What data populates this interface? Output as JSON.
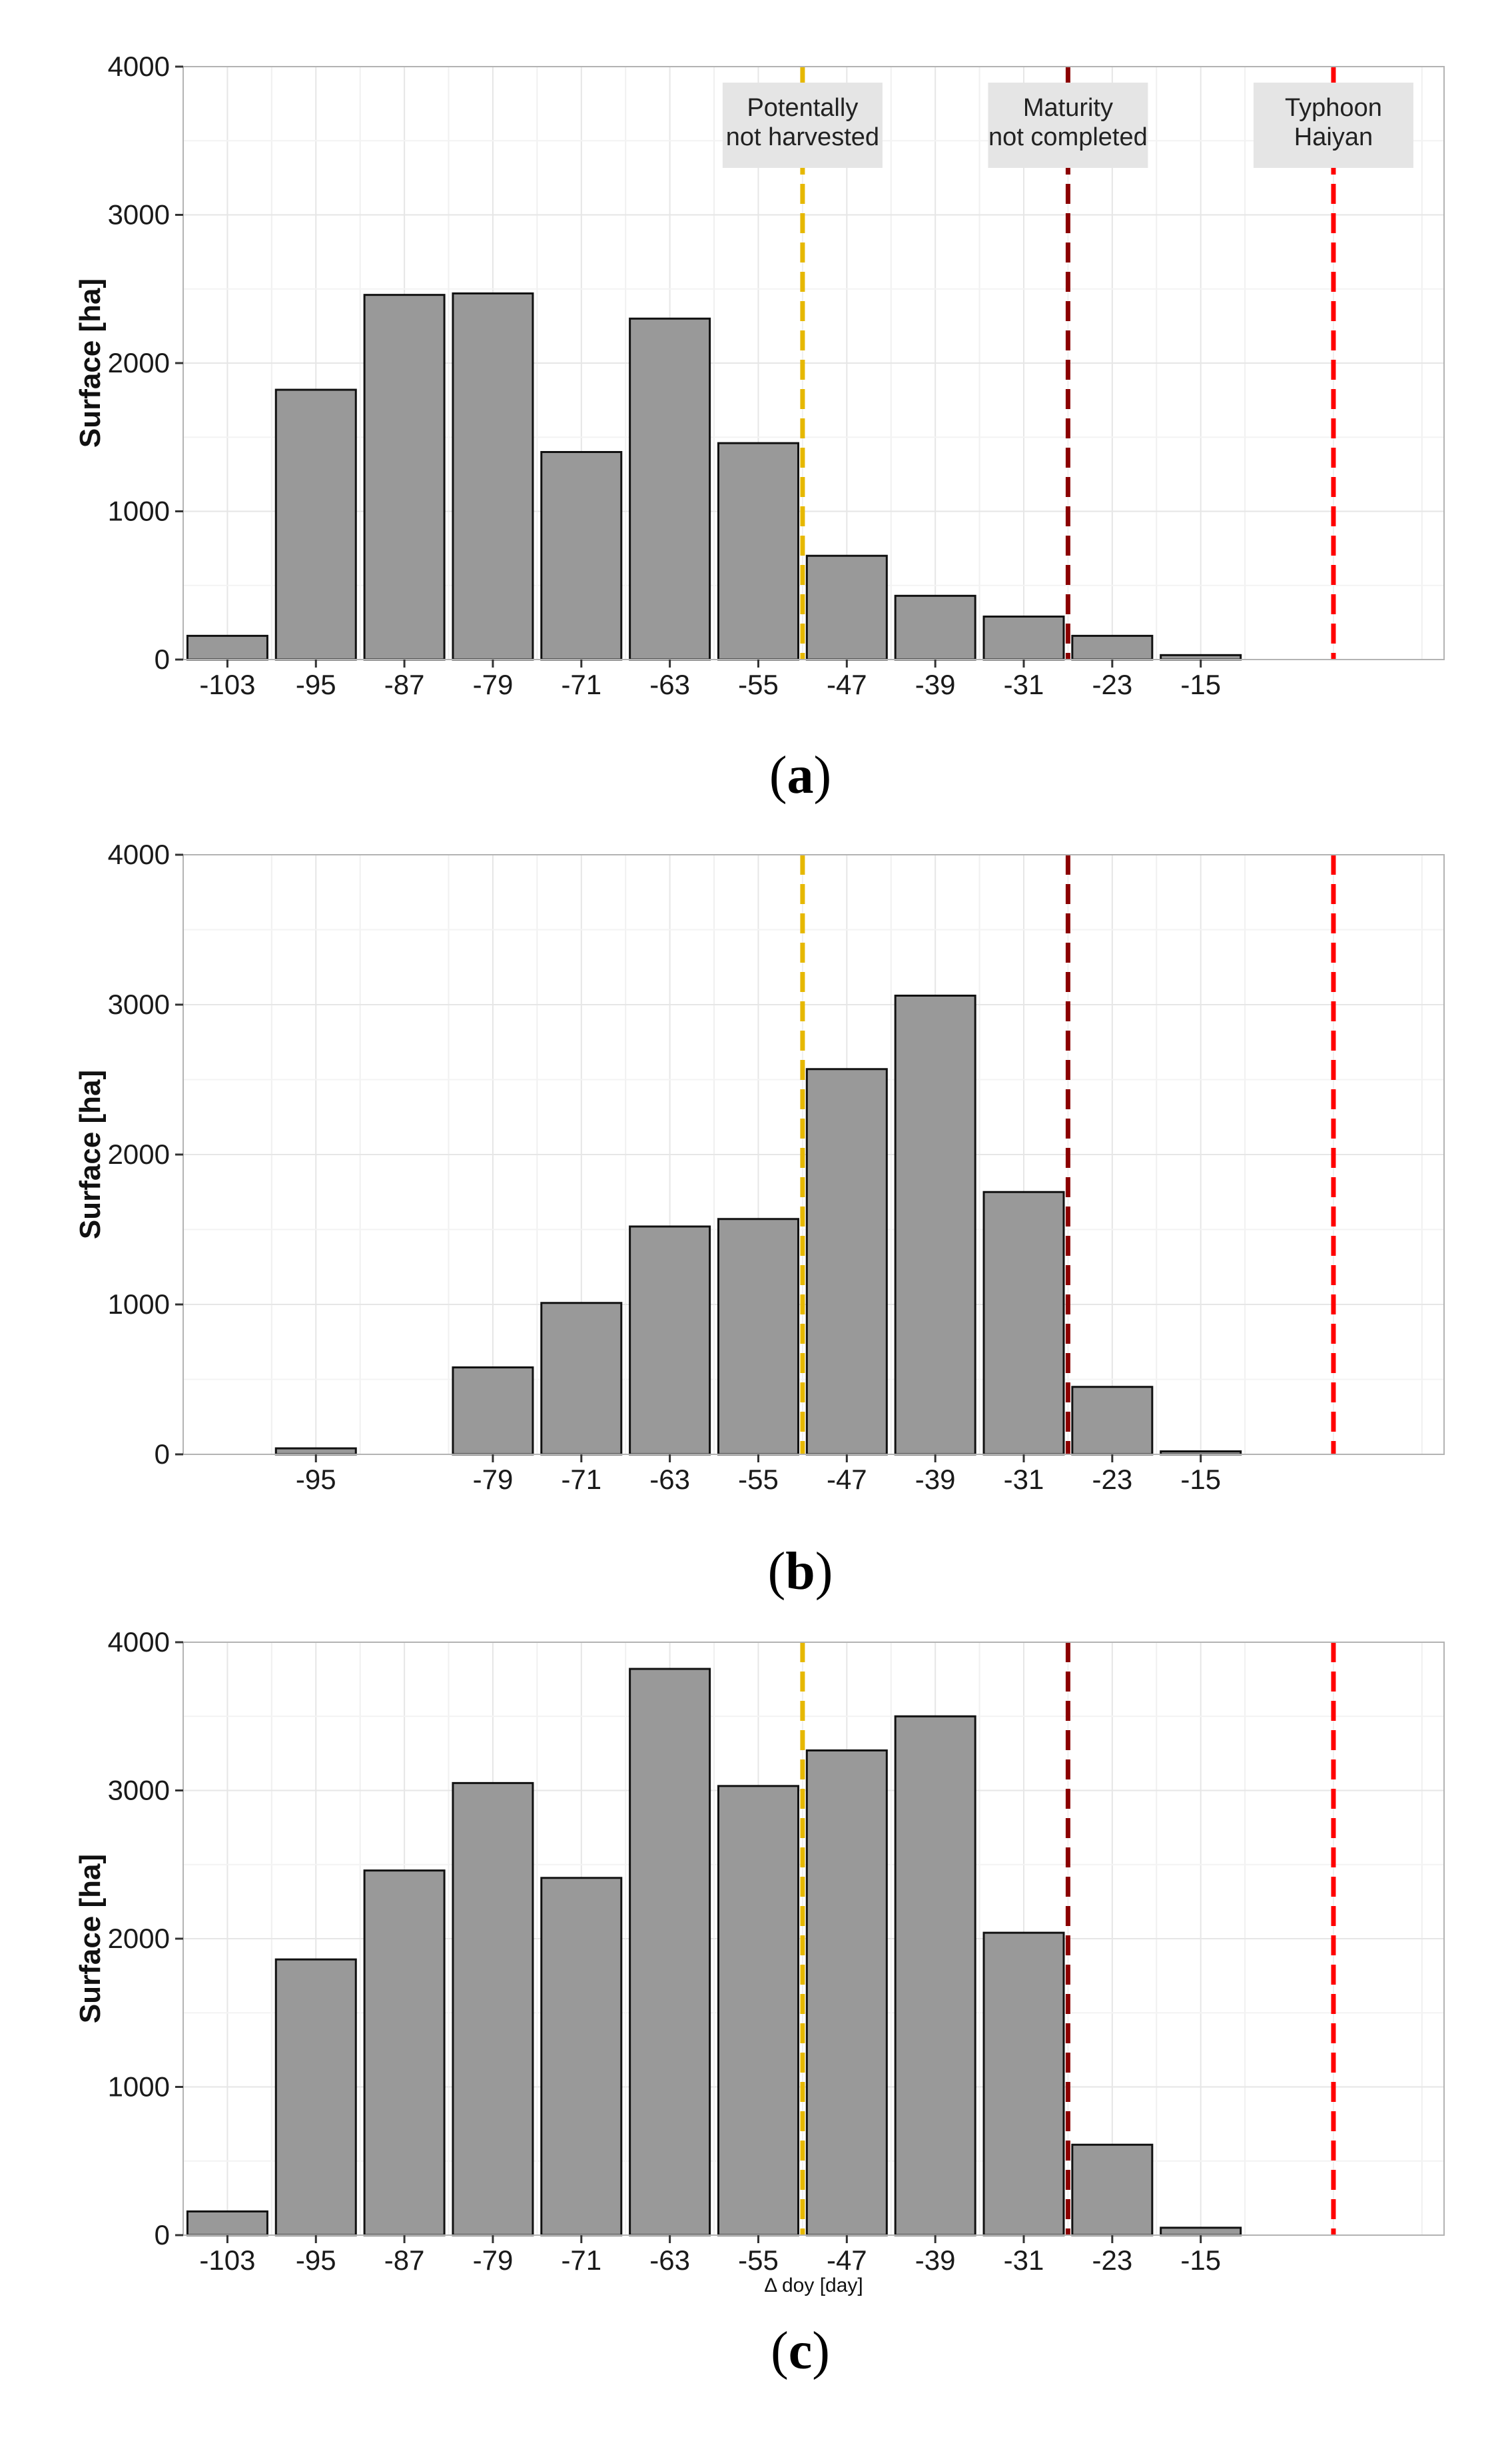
{
  "figure": {
    "vlines": [
      {
        "name": "potentially-not-harvested",
        "x": -51,
        "color": "#e6b800"
      },
      {
        "name": "maturity-not-completed",
        "x": -27,
        "color": "#8b0000"
      },
      {
        "name": "typhoon-haiyan",
        "x": -3,
        "color": "#ff0000"
      }
    ],
    "annotations": [
      {
        "name": "potentially-not-harvested",
        "x": -51,
        "lines": [
          "Potentally",
          "not harvested"
        ]
      },
      {
        "name": "maturity-not-completed",
        "x": -27,
        "lines": [
          "Maturity",
          "not completed"
        ]
      },
      {
        "name": "typhoon-haiyan",
        "x": -3,
        "lines": [
          "Typhoon",
          "Haiyan"
        ]
      }
    ]
  },
  "chart_data": [
    {
      "type": "bar",
      "panel": "a",
      "caption": "(a)",
      "caption_letter": "a",
      "ylabel": "Surface [ha]",
      "xlabel": "",
      "xlim": [
        -107,
        7
      ],
      "ylim": [
        0,
        4000
      ],
      "yticks": [
        "0",
        "1000",
        "2000",
        "3000",
        "4000"
      ],
      "yticks_values": [
        0,
        1000,
        2000,
        3000,
        4000
      ],
      "categories": [
        "-103",
        "-95",
        "-87",
        "-79",
        "-71",
        "-63",
        "-55",
        "-47",
        "-39",
        "-31",
        "-23",
        "-15"
      ],
      "x": [
        -103,
        -95,
        -87,
        -79,
        -71,
        -63,
        -55,
        -47,
        -39,
        -31,
        -23,
        -15
      ],
      "values": [
        160,
        1820,
        2460,
        2470,
        1400,
        2300,
        1460,
        700,
        430,
        290,
        160,
        30
      ],
      "show_annotations": true
    },
    {
      "type": "bar",
      "panel": "b",
      "caption": "(b)",
      "caption_letter": "b",
      "ylabel": "Surface [ha]",
      "xlabel": "",
      "xlim": [
        -107,
        7
      ],
      "ylim": [
        0,
        4000
      ],
      "yticks": [
        "0",
        "1000",
        "2000",
        "3000",
        "4000"
      ],
      "yticks_values": [
        0,
        1000,
        2000,
        3000,
        4000
      ],
      "categories": [
        "-95",
        "-79",
        "-71",
        "-63",
        "-55",
        "-47",
        "-39",
        "-31",
        "-23",
        "-15"
      ],
      "x": [
        -95,
        -79,
        -71,
        -63,
        -55,
        -47,
        -39,
        -31,
        -23,
        -15
      ],
      "values": [
        40,
        580,
        1010,
        1520,
        1570,
        2570,
        3060,
        1750,
        450,
        20
      ],
      "show_annotations": false
    },
    {
      "type": "bar",
      "panel": "c",
      "caption": "(c)",
      "caption_letter": "c",
      "ylabel": "Surface [ha]",
      "xlabel": "Δ doy [day]",
      "xlim": [
        -107,
        7
      ],
      "ylim": [
        0,
        4000
      ],
      "yticks": [
        "0",
        "1000",
        "2000",
        "3000",
        "4000"
      ],
      "yticks_values": [
        0,
        1000,
        2000,
        3000,
        4000
      ],
      "categories": [
        "-103",
        "-95",
        "-87",
        "-79",
        "-71",
        "-63",
        "-55",
        "-47",
        "-39",
        "-31",
        "-23",
        "-15"
      ],
      "x": [
        -103,
        -95,
        -87,
        -79,
        -71,
        -63,
        -55,
        -47,
        -39,
        -31,
        -23,
        -15
      ],
      "values": [
        160,
        1860,
        2460,
        3050,
        2410,
        3820,
        3030,
        3270,
        3500,
        2040,
        610,
        50
      ],
      "show_annotations": false
    }
  ]
}
